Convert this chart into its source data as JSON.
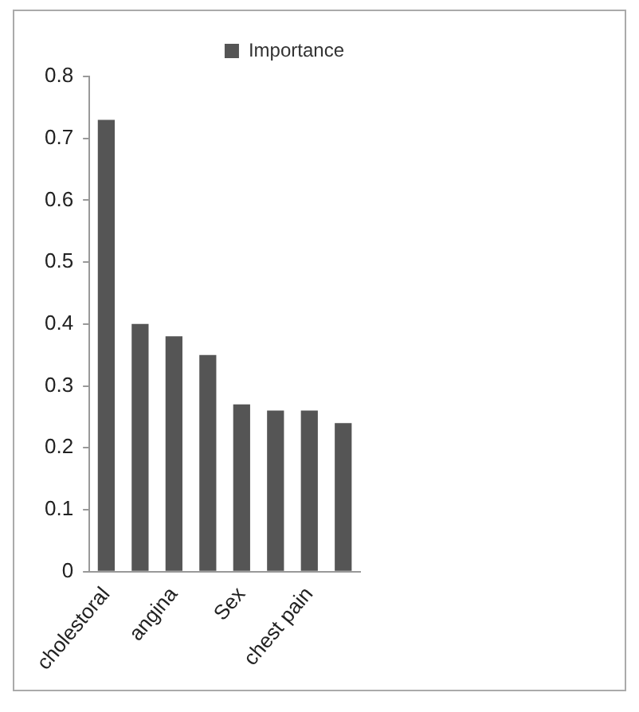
{
  "chart_data": {
    "type": "bar",
    "categories": [
      "cholestoral",
      null,
      "angina",
      null,
      "Sex",
      null,
      "chest pain",
      null
    ],
    "series": [
      {
        "name": "Importance",
        "color": "#555555",
        "values": [
          0.73,
          0.4,
          0.38,
          0.35,
          0.27,
          0.26,
          0.26,
          0.24
        ]
      }
    ],
    "ylim": [
      0,
      0.8
    ],
    "yticks": [
      0,
      0.1,
      0.2,
      0.3,
      0.4,
      0.5,
      0.6,
      0.7,
      0.8
    ],
    "grid": false,
    "legend": "top right"
  }
}
